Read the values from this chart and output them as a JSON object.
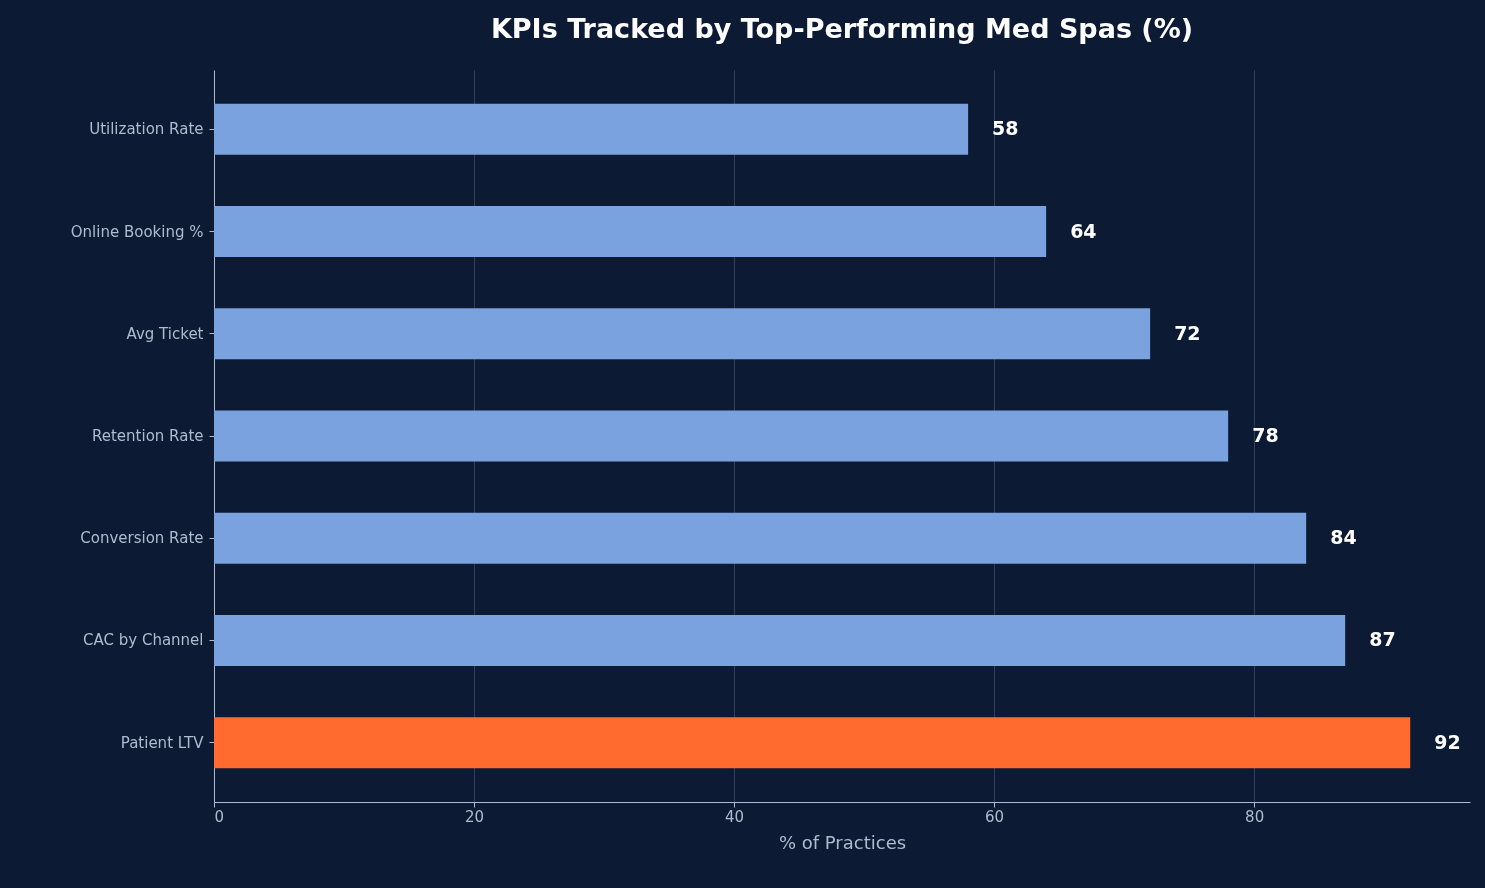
{
  "chart_data": {
    "type": "bar",
    "orientation": "horizontal",
    "title": "KPIs Tracked by Top-Performing Med Spas (%)",
    "xlabel": "% of Practices",
    "categories": [
      "Utilization Rate",
      "Online Booking %",
      "Avg Ticket",
      "Retention Rate",
      "Conversion Rate",
      "CAC by Channel",
      "Patient LTV"
    ],
    "values": [
      58,
      64,
      72,
      78,
      84,
      87,
      92
    ],
    "colors": [
      "#7aa2de",
      "#7aa2de",
      "#7aa2de",
      "#7aa2de",
      "#7aa2de",
      "#7aa2de",
      "#ff6b2e"
    ],
    "xlim": [
      0,
      96.6
    ],
    "xticks": [
      0,
      20,
      40,
      60,
      80
    ],
    "grid": "x",
    "data_labels": true
  }
}
